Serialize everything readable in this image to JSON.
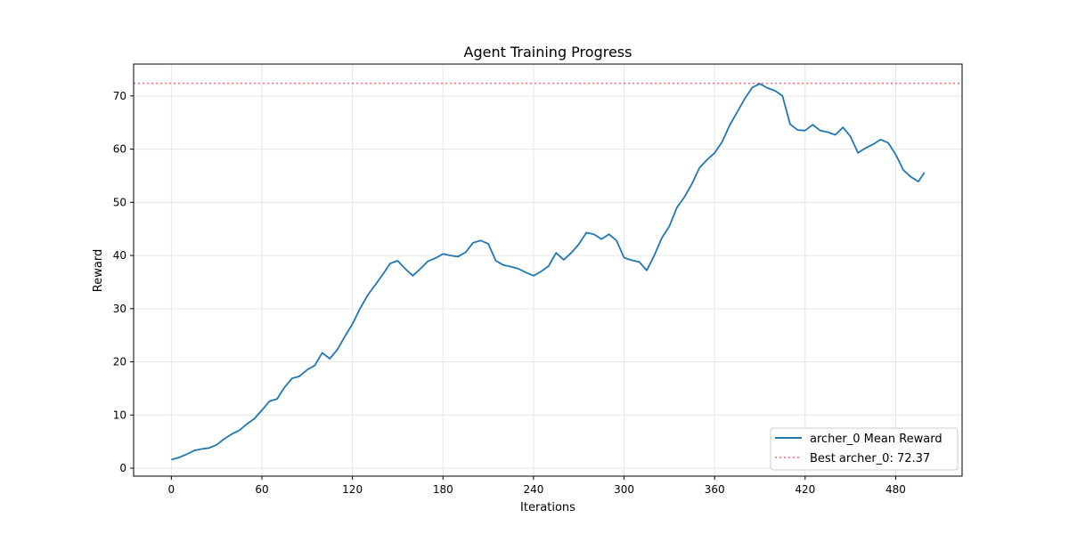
{
  "chart_data": {
    "type": "line",
    "title": "Agent Training Progress",
    "xlabel": "Iterations",
    "ylabel": "Reward",
    "xlim": [
      -25,
      524
    ],
    "ylim": [
      -1.5,
      76
    ],
    "xticks": [
      0,
      60,
      120,
      180,
      240,
      300,
      360,
      420,
      480
    ],
    "yticks": [
      0,
      10,
      20,
      30,
      40,
      50,
      60,
      70
    ],
    "grid": true,
    "legend_position": "lower right",
    "series": [
      {
        "name": "archer_0 Mean Reward",
        "color": "#1f77b4",
        "style": "solid",
        "x": [
          0,
          5,
          10,
          15,
          20,
          25,
          30,
          35,
          40,
          45,
          50,
          55,
          60,
          65,
          70,
          75,
          80,
          85,
          90,
          95,
          100,
          105,
          110,
          115,
          120,
          125,
          130,
          135,
          140,
          145,
          150,
          155,
          160,
          165,
          170,
          175,
          180,
          185,
          190,
          195,
          200,
          205,
          210,
          215,
          220,
          225,
          230,
          235,
          240,
          245,
          250,
          255,
          260,
          265,
          270,
          275,
          280,
          285,
          290,
          295,
          300,
          305,
          310,
          315,
          320,
          325,
          330,
          335,
          340,
          345,
          350,
          355,
          360,
          365,
          370,
          375,
          380,
          385,
          390,
          395,
          400,
          405,
          410,
          415,
          420,
          425,
          430,
          435,
          440,
          445,
          450,
          455,
          460,
          465,
          470,
          475,
          480,
          485,
          490,
          495,
          499
        ],
        "y": [
          1.6,
          2.0,
          2.6,
          3.3,
          3.6,
          3.8,
          4.4,
          5.5,
          6.4,
          7.1,
          8.3,
          9.3,
          10.9,
          12.6,
          13.0,
          15.2,
          16.9,
          17.3,
          18.5,
          19.3,
          21.7,
          20.6,
          22.3,
          24.8,
          27.1,
          30.0,
          32.5,
          34.4,
          36.4,
          38.5,
          39.0,
          37.5,
          36.2,
          37.5,
          38.9,
          39.5,
          40.3,
          40.0,
          39.8,
          40.6,
          42.4,
          42.8,
          42.2,
          39.0,
          38.2,
          37.9,
          37.5,
          36.8,
          36.2,
          37.0,
          38.0,
          40.5,
          39.2,
          40.5,
          42.1,
          44.3,
          44.0,
          43.1,
          44.0,
          42.8,
          39.6,
          39.1,
          38.8,
          37.2,
          40.0,
          43.3,
          45.5,
          49.0,
          51.0,
          53.5,
          56.5,
          58.0,
          59.3,
          61.4,
          64.5,
          67.0,
          69.5,
          71.6,
          72.3,
          71.5,
          71.0,
          70.0,
          64.7,
          63.6,
          63.5,
          64.6,
          63.5,
          63.2,
          62.7,
          64.1,
          62.4,
          59.3,
          60.2,
          60.9,
          61.8,
          61.2,
          59.0,
          56.1,
          54.8,
          53.9,
          55.6
        ]
      },
      {
        "name": "Best archer_0: 72.37",
        "color": "#ff0000",
        "style": "dotted",
        "y_constant": 72.37
      }
    ]
  }
}
